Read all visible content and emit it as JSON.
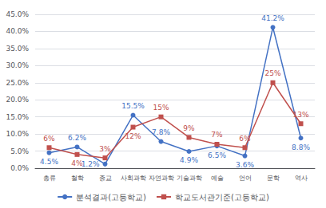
{
  "chart_data": {
    "type": "line",
    "categories": [
      "총류",
      "철학",
      "종교",
      "사회과학",
      "자연과학",
      "기술과학",
      "예술",
      "언어",
      "문학",
      "역사"
    ],
    "series": [
      {
        "name": "분석결과(고등학교)",
        "color": "#4472C4",
        "marker": "circle",
        "values": [
          4.5,
          6.2,
          1.2,
          15.5,
          7.8,
          4.9,
          6.5,
          3.6,
          41.2,
          8.8
        ],
        "value_labels": [
          "4.5%",
          "6.2%",
          "1.2%",
          "15.5%",
          "7.8%",
          "4.9%",
          "6.5%",
          "3.6%",
          "41.2%",
          "8.8%"
        ]
      },
      {
        "name": "학교도서관기준(고등학교)",
        "color": "#C0504D",
        "marker": "square",
        "values": [
          6.0,
          4.0,
          3.0,
          12.0,
          15.0,
          9.0,
          7.0,
          6.0,
          25.0,
          13.0
        ],
        "value_labels": [
          "6%",
          "4%",
          "3%",
          "12%",
          "15%",
          "9%",
          "7%",
          "6%",
          "25%",
          "13%"
        ]
      }
    ],
    "ylim": [
      0.0,
      45.0
    ],
    "yticks": [
      {
        "value": 0.0,
        "label": "0.0%"
      },
      {
        "value": 5.0,
        "label": "5.0%"
      },
      {
        "value": 10.0,
        "label": "10.0%"
      },
      {
        "value": 15.0,
        "label": "15.0%"
      },
      {
        "value": 20.0,
        "label": "20.0%"
      },
      {
        "value": 25.0,
        "label": "25.0%"
      },
      {
        "value": 30.0,
        "label": "30.0%"
      },
      {
        "value": 35.0,
        "label": "35.0%"
      },
      {
        "value": 40.0,
        "label": "40.0%"
      },
      {
        "value": 45.0,
        "label": "45.0%"
      }
    ],
    "grid": true,
    "legend": "bottom",
    "data_labels": true
  }
}
